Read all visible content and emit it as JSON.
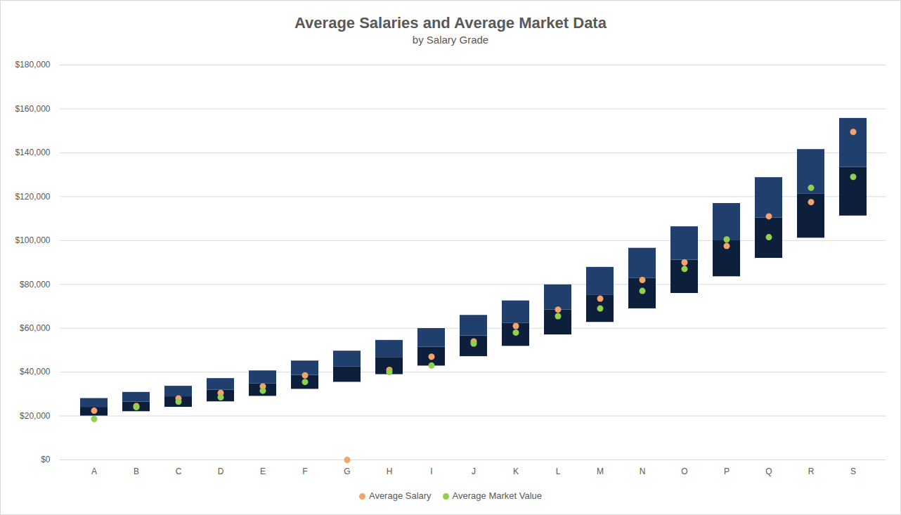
{
  "chart_data": {
    "type": "floating_bar",
    "title": "Average Salaries and Average Market Data",
    "subtitle": "by Salary Grade",
    "categories": [
      "A",
      "B",
      "C",
      "D",
      "E",
      "F",
      "G",
      "H",
      "I",
      "J",
      "K",
      "L",
      "M",
      "N",
      "O",
      "P",
      "Q",
      "R",
      "S"
    ],
    "ranges": {
      "low": [
        20000,
        22000,
        24000,
        26500,
        29000,
        32200,
        35400,
        38900,
        42800,
        47100,
        51800,
        57000,
        62700,
        68900,
        75900,
        83500,
        91900,
        101100,
        111200
      ],
      "mid": [
        24000,
        26400,
        28800,
        31800,
        34800,
        38600,
        42500,
        46700,
        51400,
        56500,
        62200,
        68400,
        75200,
        82700,
        91100,
        100200,
        110300,
        121300,
        133400
      ],
      "high": [
        28000,
        30800,
        33600,
        37100,
        40600,
        45100,
        49600,
        54500,
        59900,
        65900,
        72500,
        79800,
        87800,
        96500,
        106300,
        116900,
        128700,
        141500,
        155700
      ],
      "colors": [
        "#0e1f3b",
        "#213f6d"
      ]
    },
    "series": [
      {
        "name": "Average Salary",
        "type": "scatter",
        "marker": "circle",
        "color": "#f4a36b",
        "values": [
          22400,
          24500,
          28000,
          30500,
          33500,
          38500,
          0,
          41000,
          47000,
          54000,
          61000,
          68500,
          73500,
          82000,
          90000,
          97500,
          111000,
          117500,
          149500
        ]
      },
      {
        "name": "Average Market Value",
        "type": "scatter",
        "marker": "circle",
        "color": "#8fd14f",
        "values": [
          18600,
          24000,
          26500,
          28500,
          31500,
          35500,
          null,
          40000,
          43000,
          53000,
          58000,
          65500,
          69000,
          77000,
          87000,
          100500,
          101500,
          124000,
          129000
        ]
      }
    ],
    "ylim": [
      0,
      180000
    ],
    "yticks": [
      {
        "value": 0,
        "label": "$0"
      },
      {
        "value": 20000,
        "label": "$20,000"
      },
      {
        "value": 40000,
        "label": "$40,000"
      },
      {
        "value": 60000,
        "label": "$60,000"
      },
      {
        "value": 80000,
        "label": "$80,000"
      },
      {
        "value": 100000,
        "label": "$100,000"
      },
      {
        "value": 120000,
        "label": "$120,000"
      },
      {
        "value": 140000,
        "label": "$140,000"
      },
      {
        "value": 160000,
        "label": "$160,000"
      },
      {
        "value": 180000,
        "label": "$180,000"
      }
    ],
    "grid": true,
    "legend": "bottom"
  }
}
